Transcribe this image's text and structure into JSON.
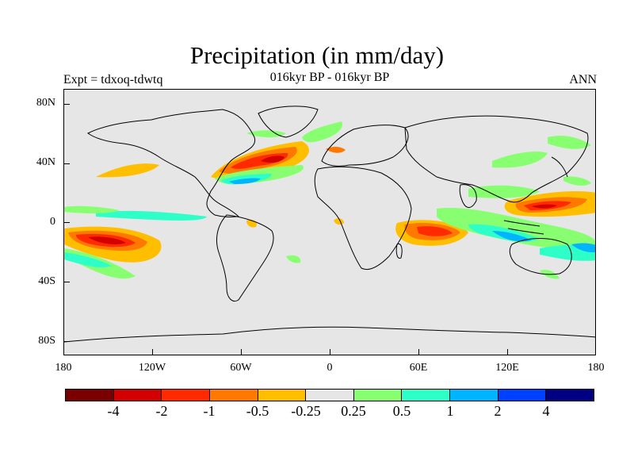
{
  "header": {
    "title": "Precipitation (in mm/day)",
    "subtitle": "016kyr BP - 016kyr BP",
    "experiment": "Expt = tdxoq-tdwtq",
    "season": "ANN"
  },
  "axes": {
    "y_labels": [
      "80N",
      "40N",
      "0",
      "40S",
      "80S"
    ],
    "x_labels": [
      "180",
      "120W",
      "60W",
      "0",
      "60E",
      "120E",
      "180"
    ]
  },
  "colorbar": {
    "colors": [
      "#7a0000",
      "#d20000",
      "#ff2a00",
      "#ff7800",
      "#ffbe00",
      "#e6e6e6",
      "#88ff70",
      "#2effc8",
      "#00b4ff",
      "#0040ff",
      "#000082"
    ],
    "labels": [
      "-4",
      "-2",
      "-1",
      "-0.5",
      "-0.25",
      "0.25",
      "0.5",
      "1",
      "2",
      "4"
    ]
  },
  "chart_data": {
    "type": "heatmap",
    "title": "Precipitation (in mm/day)",
    "subtitle": "016kyr BP - 016kyr BP",
    "x_range": [
      -180,
      180
    ],
    "y_range": [
      -90,
      90
    ],
    "levels": [
      -4,
      -2,
      -1,
      -0.5,
      -0.25,
      0.25,
      0.5,
      1,
      2,
      4
    ],
    "features": [
      {
        "region": "North Atlantic",
        "sign": "negative",
        "magnitude": "-2 to -4"
      },
      {
        "region": "Gulf Stream region",
        "sign": "positive",
        "magnitude": "1 to 2"
      },
      {
        "region": "Central South Pacific",
        "sign": "negative",
        "magnitude": "-2 to -4"
      },
      {
        "region": "Western Indian Ocean",
        "sign": "negative",
        "magnitude": "-1 to -2"
      },
      {
        "region": "Western Pacific",
        "sign": "negative",
        "magnitude": "-2 to -4"
      },
      {
        "region": "Equatorial Indian Ocean / Maritime Continent",
        "sign": "positive",
        "magnitude": "0.5 to 2"
      }
    ]
  }
}
